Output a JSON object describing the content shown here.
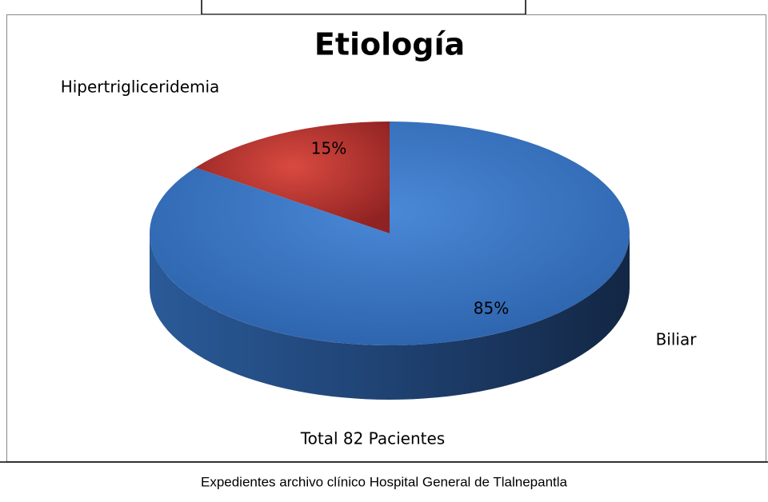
{
  "chart_data": {
    "type": "pie",
    "title": "Etiología",
    "categories": [
      "Biliar",
      "Hipertrigliceridemia"
    ],
    "values": [
      85,
      15
    ],
    "value_labels": [
      "85%",
      "15%"
    ],
    "colors": [
      "#3a73c0",
      "#c0403a"
    ],
    "annotations": [
      "Total  82 Pacientes"
    ],
    "caption": "Expedientes archivo clínico Hospital General de Tlalnepantla"
  }
}
